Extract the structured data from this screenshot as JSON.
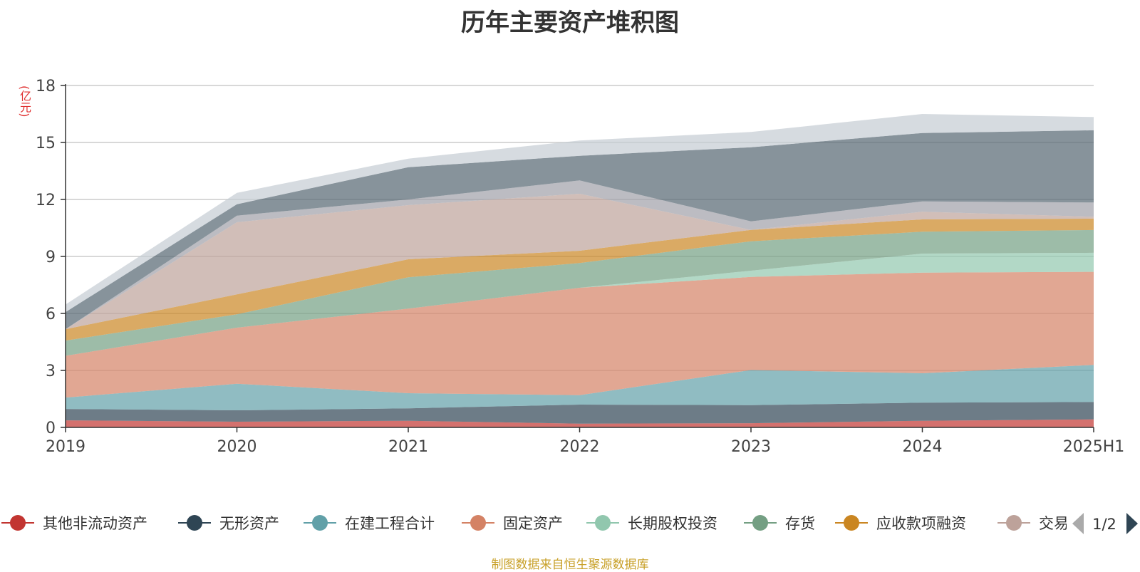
{
  "chart_data": {
    "type": "area",
    "stacked": true,
    "title": "历年主要资产堆积图",
    "unit": "(亿元)",
    "source": "制图数据来自恒生聚源数据库",
    "categories": [
      "2019",
      "2020",
      "2021",
      "2022",
      "2023",
      "2024",
      "2025H1"
    ],
    "ylim": [
      0,
      18
    ],
    "yticks": [
      0,
      3,
      6,
      9,
      12,
      15,
      18
    ],
    "grid": true,
    "legend_position": "bottom",
    "legend_page": "1/2",
    "series": [
      {
        "name": "其他非流动资产",
        "color": "#c23531",
        "opacity": 0.7,
        "values": [
          0.37,
          0.3,
          0.35,
          0.2,
          0.22,
          0.35,
          0.42
        ]
      },
      {
        "name": "无形资产",
        "color": "#2f4554",
        "opacity": 0.7,
        "values": [
          0.6,
          0.6,
          0.65,
          1.0,
          0.95,
          0.95,
          0.92
        ]
      },
      {
        "name": "在建工程合计",
        "color": "#61a0a8",
        "opacity": 0.7,
        "values": [
          0.6,
          1.4,
          0.8,
          0.5,
          1.85,
          1.55,
          1.95
        ]
      },
      {
        "name": "固定资产",
        "color": "#d48265",
        "opacity": 0.7,
        "values": [
          2.2,
          2.95,
          4.45,
          5.65,
          4.9,
          5.3,
          4.9
        ]
      },
      {
        "name": "长期股权投资",
        "color": "#91c7ae",
        "opacity": 0.7,
        "values": [
          0.0,
          0.0,
          0.0,
          0.0,
          0.33,
          1.0,
          1.0
        ]
      },
      {
        "name": "存货",
        "color": "#749f83",
        "opacity": 0.7,
        "values": [
          0.8,
          0.7,
          1.65,
          1.3,
          1.55,
          1.15,
          1.2
        ]
      },
      {
        "name": "应收款项融资",
        "color": "#ca8622",
        "opacity": 0.7,
        "values": [
          0.6,
          1.05,
          0.95,
          0.65,
          0.6,
          0.65,
          0.6
        ]
      },
      {
        "name": "交易性金融资产",
        "color": "#bda29a",
        "opacity": 0.7,
        "values": [
          0.0,
          3.8,
          2.85,
          3.0,
          0.0,
          0.4,
          0.1
        ]
      },
      {
        "name": "",
        "color": "#a0a0a8",
        "opacity": 0.7,
        "values": [
          0.0,
          0.35,
          0.3,
          0.7,
          0.45,
          0.55,
          0.75
        ]
      },
      {
        "name": "",
        "color": "#546570",
        "opacity": 0.7,
        "values": [
          0.9,
          0.6,
          1.7,
          1.3,
          3.9,
          3.6,
          3.8
        ]
      },
      {
        "name": "",
        "color": "#c4ccd3",
        "opacity": 0.7,
        "values": [
          0.4,
          0.6,
          0.45,
          0.8,
          0.8,
          1.0,
          0.7
        ]
      }
    ]
  }
}
